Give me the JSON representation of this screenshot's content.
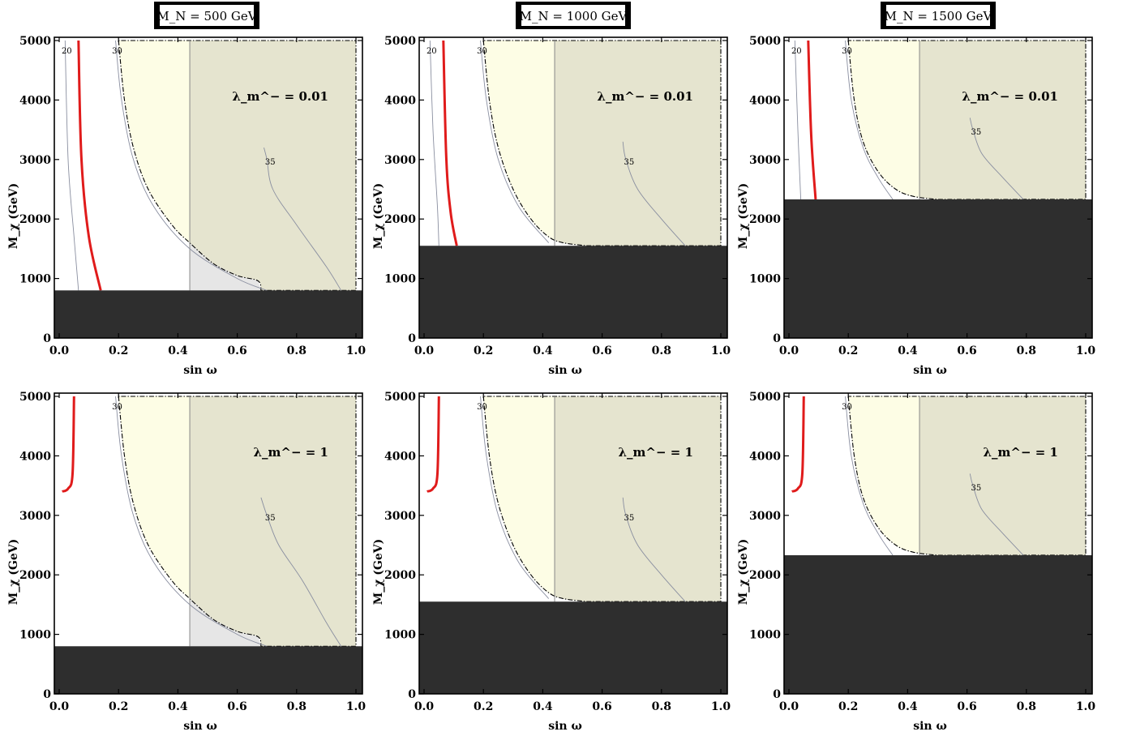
{
  "column_titles": [
    "M_N = 500 GeV",
    "M_N = 1000 GeV",
    "M_N = 1500 GeV"
  ],
  "colors": {
    "excluded_black": "#2e2e2e",
    "yellow_region": "#fdfde5",
    "olive_region": "#e5e4cf",
    "gray_region": "#e6e6e6",
    "red_curve": "#e01b1b",
    "contour": "#8a8fa0"
  },
  "chart_data": [
    {
      "type": "contour",
      "panel": "top-left",
      "column_title": "M_N = 500 GeV",
      "annotation": "λ_m^− = 0.01",
      "xlabel": "sin ω",
      "ylabel": "M_χ (GeV)",
      "xlim": [
        0,
        1
      ],
      "ylim": [
        0,
        5000
      ],
      "xticks": [
        "0.0",
        "0.2",
        "0.4",
        "0.6",
        "0.8",
        "1.0"
      ],
      "yticks": [
        "0",
        "1000",
        "2000",
        "3000",
        "4000",
        "5000"
      ],
      "excluded_below": 800,
      "vertical_boundary_x": 0.44,
      "yellow_boundary": [
        [
          0.2,
          5000
        ],
        [
          0.22,
          4000
        ],
        [
          0.25,
          3200
        ],
        [
          0.3,
          2500
        ],
        [
          0.38,
          1900
        ],
        [
          0.44,
          1600
        ],
        [
          0.52,
          1250
        ],
        [
          0.6,
          1050
        ],
        [
          0.67,
          960
        ],
        [
          0.68,
          800
        ],
        [
          1.0,
          800
        ],
        [
          1.0,
          5000
        ]
      ],
      "gray_region": true,
      "red_curve": [
        [
          0.065,
          5000
        ],
        [
          0.075,
          3000
        ],
        [
          0.1,
          1700
        ],
        [
          0.14,
          800
        ]
      ],
      "contours": [
        {
          "label": "20",
          "points": [
            [
              0.02,
              5000
            ],
            [
              0.03,
              3000
            ],
            [
              0.05,
              1700
            ],
            [
              0.065,
              800
            ]
          ]
        },
        {
          "label": "30",
          "points": [
            [
              0.19,
              5000
            ],
            [
              0.21,
              4000
            ],
            [
              0.25,
              3000
            ],
            [
              0.32,
              2200
            ],
            [
              0.44,
              1500
            ],
            [
              0.6,
              1000
            ],
            [
              0.7,
              800
            ]
          ]
        },
        {
          "label": "35",
          "points": [
            [
              0.69,
              3200
            ],
            [
              0.7,
              3000
            ],
            [
              0.72,
              2500
            ],
            [
              0.8,
              1900
            ],
            [
              0.9,
              1200
            ],
            [
              0.95,
              800
            ]
          ]
        }
      ]
    },
    {
      "type": "contour",
      "panel": "top-middle",
      "column_title": "M_N = 1000 GeV",
      "annotation": "λ_m^− = 0.01",
      "xlabel": "sin ω",
      "ylabel": "M_χ (GeV)",
      "xlim": [
        0,
        1
      ],
      "ylim": [
        0,
        5000
      ],
      "xticks": [
        "0.0",
        "0.2",
        "0.4",
        "0.6",
        "0.8",
        "1.0"
      ],
      "yticks": [
        "0",
        "1000",
        "2000",
        "3000",
        "4000",
        "5000"
      ],
      "excluded_below": 1550,
      "vertical_boundary_x": 0.44,
      "yellow_boundary": [
        [
          0.2,
          5000
        ],
        [
          0.22,
          4000
        ],
        [
          0.25,
          3200
        ],
        [
          0.3,
          2500
        ],
        [
          0.36,
          2000
        ],
        [
          0.42,
          1700
        ],
        [
          0.47,
          1600
        ],
        [
          0.55,
          1550
        ],
        [
          1.0,
          1550
        ],
        [
          1.0,
          5000
        ]
      ],
      "red_curve": [
        [
          0.065,
          5000
        ],
        [
          0.075,
          3000
        ],
        [
          0.09,
          2100
        ],
        [
          0.11,
          1550
        ]
      ],
      "contours": [
        {
          "label": "20",
          "points": [
            [
              0.02,
              5000
            ],
            [
              0.03,
              3500
            ],
            [
              0.045,
              2200
            ],
            [
              0.05,
              1550
            ]
          ]
        },
        {
          "label": "30",
          "points": [
            [
              0.19,
              5000
            ],
            [
              0.21,
              4000
            ],
            [
              0.25,
              3000
            ],
            [
              0.32,
              2200
            ],
            [
              0.42,
              1600
            ]
          ]
        },
        {
          "label": "35",
          "points": [
            [
              0.67,
              3300
            ],
            [
              0.68,
              3000
            ],
            [
              0.72,
              2500
            ],
            [
              0.8,
              2000
            ],
            [
              0.88,
              1550
            ]
          ]
        }
      ]
    },
    {
      "type": "contour",
      "panel": "top-right",
      "column_title": "M_N = 1500 GeV",
      "annotation": "λ_m^− = 0.01",
      "xlabel": "sin ω",
      "ylabel": "M_χ (GeV)",
      "xlim": [
        0,
        1
      ],
      "ylim": [
        0,
        5000
      ],
      "xticks": [
        "0.0",
        "0.2",
        "0.4",
        "0.6",
        "0.8",
        "1.0"
      ],
      "yticks": [
        "0",
        "1000",
        "2000",
        "3000",
        "4000",
        "5000"
      ],
      "excluded_below": 2330,
      "vertical_boundary_x": 0.44,
      "yellow_boundary": [
        [
          0.2,
          5000
        ],
        [
          0.22,
          4000
        ],
        [
          0.25,
          3300
        ],
        [
          0.3,
          2800
        ],
        [
          0.36,
          2500
        ],
        [
          0.42,
          2380
        ],
        [
          0.5,
          2330
        ],
        [
          1.0,
          2330
        ],
        [
          1.0,
          5000
        ]
      ],
      "red_curve": [
        [
          0.065,
          5000
        ],
        [
          0.075,
          3400
        ],
        [
          0.09,
          2330
        ]
      ],
      "contours": [
        {
          "label": "20",
          "points": [
            [
              0.02,
              5000
            ],
            [
              0.03,
              3500
            ],
            [
              0.04,
              2330
            ]
          ]
        },
        {
          "label": "30",
          "points": [
            [
              0.19,
              5000
            ],
            [
              0.21,
              4000
            ],
            [
              0.25,
              3200
            ],
            [
              0.3,
              2700
            ],
            [
              0.35,
              2330
            ]
          ]
        },
        {
          "label": "35",
          "points": [
            [
              0.61,
              3700
            ],
            [
              0.62,
              3500
            ],
            [
              0.65,
              3100
            ],
            [
              0.72,
              2700
            ],
            [
              0.79,
              2330
            ]
          ]
        }
      ]
    },
    {
      "type": "contour",
      "panel": "bottom-left",
      "column_title": "M_N = 500 GeV",
      "annotation": "λ_m^− = 1",
      "xlabel": "sin ω",
      "ylabel": "M_χ (GeV)",
      "xlim": [
        0,
        1
      ],
      "ylim": [
        0,
        5000
      ],
      "xticks": [
        "0.0",
        "0.2",
        "0.4",
        "0.6",
        "0.8",
        "1.0"
      ],
      "yticks": [
        "0",
        "1000",
        "2000",
        "3000",
        "4000",
        "5000"
      ],
      "excluded_below": 800,
      "vertical_boundary_x": 0.44,
      "yellow_boundary": [
        [
          0.2,
          5000
        ],
        [
          0.22,
          4000
        ],
        [
          0.25,
          3200
        ],
        [
          0.3,
          2500
        ],
        [
          0.38,
          1900
        ],
        [
          0.44,
          1600
        ],
        [
          0.52,
          1250
        ],
        [
          0.6,
          1050
        ],
        [
          0.67,
          960
        ],
        [
          0.68,
          800
        ],
        [
          1.0,
          800
        ],
        [
          1.0,
          5000
        ]
      ],
      "gray_region": true,
      "red_curve": [
        [
          0.01,
          3400
        ],
        [
          0.03,
          3450
        ],
        [
          0.045,
          3700
        ],
        [
          0.05,
          5000
        ]
      ],
      "contours": [
        {
          "label": "30",
          "points": [
            [
              0.19,
              5000
            ],
            [
              0.21,
              4000
            ],
            [
              0.25,
              3000
            ],
            [
              0.32,
              2200
            ],
            [
              0.44,
              1500
            ],
            [
              0.6,
              1000
            ],
            [
              0.7,
              800
            ]
          ]
        },
        {
          "label": "35",
          "points": [
            [
              0.68,
              3300
            ],
            [
              0.7,
              3000
            ],
            [
              0.74,
              2500
            ],
            [
              0.82,
              1900
            ],
            [
              0.9,
              1200
            ],
            [
              0.95,
              800
            ]
          ]
        }
      ]
    },
    {
      "type": "contour",
      "panel": "bottom-middle",
      "column_title": "M_N = 1000 GeV",
      "annotation": "λ_m^− = 1",
      "xlabel": "sin ω",
      "ylabel": "M_χ (GeV)",
      "xlim": [
        0,
        1
      ],
      "ylim": [
        0,
        5000
      ],
      "xticks": [
        "0.0",
        "0.2",
        "0.4",
        "0.6",
        "0.8",
        "1.0"
      ],
      "yticks": [
        "0",
        "1000",
        "2000",
        "3000",
        "4000",
        "5000"
      ],
      "excluded_below": 1550,
      "vertical_boundary_x": 0.44,
      "yellow_boundary": [
        [
          0.2,
          5000
        ],
        [
          0.22,
          4000
        ],
        [
          0.25,
          3200
        ],
        [
          0.3,
          2500
        ],
        [
          0.36,
          2000
        ],
        [
          0.42,
          1700
        ],
        [
          0.47,
          1600
        ],
        [
          0.55,
          1550
        ],
        [
          1.0,
          1550
        ],
        [
          1.0,
          5000
        ]
      ],
      "red_curve": [
        [
          0.01,
          3400
        ],
        [
          0.03,
          3450
        ],
        [
          0.045,
          3700
        ],
        [
          0.05,
          5000
        ]
      ],
      "contours": [
        {
          "label": "30",
          "points": [
            [
              0.19,
              5000
            ],
            [
              0.21,
              4000
            ],
            [
              0.25,
              3000
            ],
            [
              0.32,
              2200
            ],
            [
              0.42,
              1600
            ]
          ]
        },
        {
          "label": "35",
          "points": [
            [
              0.67,
              3300
            ],
            [
              0.68,
              3000
            ],
            [
              0.72,
              2500
            ],
            [
              0.8,
              2000
            ],
            [
              0.88,
              1550
            ]
          ]
        }
      ]
    },
    {
      "type": "contour",
      "panel": "bottom-right",
      "column_title": "M_N = 1500 GeV",
      "annotation": "λ_m^− = 1",
      "xlabel": "sin ω",
      "ylabel": "M_χ (GeV)",
      "xlim": [
        0,
        1
      ],
      "ylim": [
        0,
        5000
      ],
      "xticks": [
        "0.0",
        "0.2",
        "0.4",
        "0.6",
        "0.8",
        "1.0"
      ],
      "yticks": [
        "0",
        "1000",
        "2000",
        "3000",
        "4000",
        "5000"
      ],
      "excluded_below": 2330,
      "vertical_boundary_x": 0.44,
      "yellow_boundary": [
        [
          0.2,
          5000
        ],
        [
          0.22,
          4000
        ],
        [
          0.25,
          3300
        ],
        [
          0.3,
          2800
        ],
        [
          0.36,
          2500
        ],
        [
          0.42,
          2380
        ],
        [
          0.5,
          2330
        ],
        [
          1.0,
          2330
        ],
        [
          1.0,
          5000
        ]
      ],
      "red_curve": [
        [
          0.01,
          3400
        ],
        [
          0.03,
          3450
        ],
        [
          0.045,
          3700
        ],
        [
          0.05,
          5000
        ]
      ],
      "contours": [
        {
          "label": "30",
          "points": [
            [
              0.19,
              5000
            ],
            [
              0.21,
              4000
            ],
            [
              0.25,
              3200
            ],
            [
              0.3,
              2700
            ],
            [
              0.35,
              2330
            ]
          ]
        },
        {
          "label": "35",
          "points": [
            [
              0.61,
              3700
            ],
            [
              0.62,
              3500
            ],
            [
              0.65,
              3100
            ],
            [
              0.72,
              2700
            ],
            [
              0.79,
              2330
            ]
          ]
        }
      ]
    }
  ]
}
